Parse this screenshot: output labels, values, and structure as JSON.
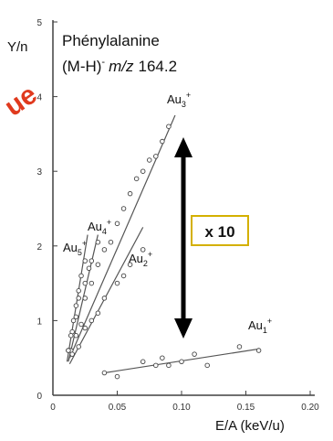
{
  "chart_data": {
    "type": "scatter",
    "title": "Phénylalanine",
    "subtitle_parts": {
      "pre": "(M-H)",
      "sup": "-",
      "mz": "m/z",
      "value": "164.2"
    },
    "ylabel": "Y/n",
    "xlabel": "E/A (keV/u)",
    "xlim": [
      0,
      0.2
    ],
    "ylim": [
      0,
      5
    ],
    "xticks": [
      0,
      0.05,
      0.1,
      0.15,
      0.2
    ],
    "xtick_labels": [
      "0",
      "0.05",
      "0.10",
      "0.15",
      "0.20"
    ],
    "yticks": [
      0,
      1,
      2,
      3,
      4,
      5
    ],
    "ytick_labels": [
      "0",
      "1",
      "2",
      "3",
      "4",
      "5"
    ],
    "grid": false,
    "legend": "none",
    "series": [
      {
        "name": "Au3+",
        "base": "Au",
        "sub": "3",
        "sup": "+",
        "x": [
          0.014,
          0.018,
          0.022,
          0.025,
          0.03,
          0.035,
          0.04,
          0.045,
          0.05,
          0.055,
          0.06,
          0.065,
          0.07,
          0.075,
          0.08,
          0.085,
          0.09
        ],
        "y": [
          0.6,
          0.8,
          0.95,
          1.3,
          1.5,
          1.75,
          1.95,
          2.05,
          2.3,
          2.5,
          2.7,
          2.9,
          3.0,
          3.15,
          3.2,
          3.4,
          3.6
        ],
        "fit": [
          [
            0.013,
            0.5
          ],
          [
            0.095,
            3.75
          ]
        ]
      },
      {
        "name": "Au2+",
        "base": "Au",
        "sub": "2",
        "sup": "+",
        "x": [
          0.015,
          0.02,
          0.025,
          0.03,
          0.035,
          0.04,
          0.05,
          0.055,
          0.06,
          0.07
        ],
        "y": [
          0.55,
          0.65,
          0.9,
          1.0,
          1.1,
          1.3,
          1.5,
          1.6,
          1.75,
          1.95
        ],
        "fit": [
          [
            0.013,
            0.42
          ],
          [
            0.07,
            2.25
          ]
        ]
      },
      {
        "name": "Au4+",
        "base": "Au",
        "sub": "4",
        "sup": "+",
        "x": [
          0.012,
          0.015,
          0.018,
          0.02,
          0.025,
          0.028,
          0.03,
          0.035
        ],
        "y": [
          0.6,
          0.85,
          1.05,
          1.3,
          1.5,
          1.7,
          1.8,
          2.05
        ],
        "fit": [
          [
            0.012,
            0.45
          ],
          [
            0.035,
            2.15
          ]
        ]
      },
      {
        "name": "Au5+",
        "base": "Au",
        "sub": "5",
        "sup": "+",
        "x": [
          0.012,
          0.014,
          0.016,
          0.018,
          0.02,
          0.022,
          0.025
        ],
        "y": [
          0.6,
          0.8,
          1.0,
          1.2,
          1.4,
          1.6,
          1.8
        ],
        "fit": [
          [
            0.011,
            0.45
          ],
          [
            0.027,
            2.15
          ]
        ]
      },
      {
        "name": "Au1+",
        "base": "Au",
        "sub": "1",
        "sup": "+",
        "x": [
          0.04,
          0.05,
          0.07,
          0.08,
          0.085,
          0.09,
          0.1,
          0.11,
          0.12,
          0.145,
          0.16
        ],
        "y": [
          0.3,
          0.25,
          0.45,
          0.4,
          0.5,
          0.4,
          0.45,
          0.55,
          0.4,
          0.65,
          0.6
        ],
        "fit": [
          [
            0.04,
            0.3
          ],
          [
            0.16,
            0.62
          ]
        ]
      }
    ],
    "annotation": {
      "text": "x 10",
      "from_y": 3.3,
      "to_y": 0.55,
      "x": 0.1
    },
    "watermark": "ue",
    "colors": {
      "axis": "#404040",
      "annotation_box_border": "#d4b000",
      "annotation_box_fill": "#ffffff",
      "watermark": "#e03a1e",
      "arrow": "#000000",
      "text": "#111111",
      "data": "#555555"
    }
  }
}
